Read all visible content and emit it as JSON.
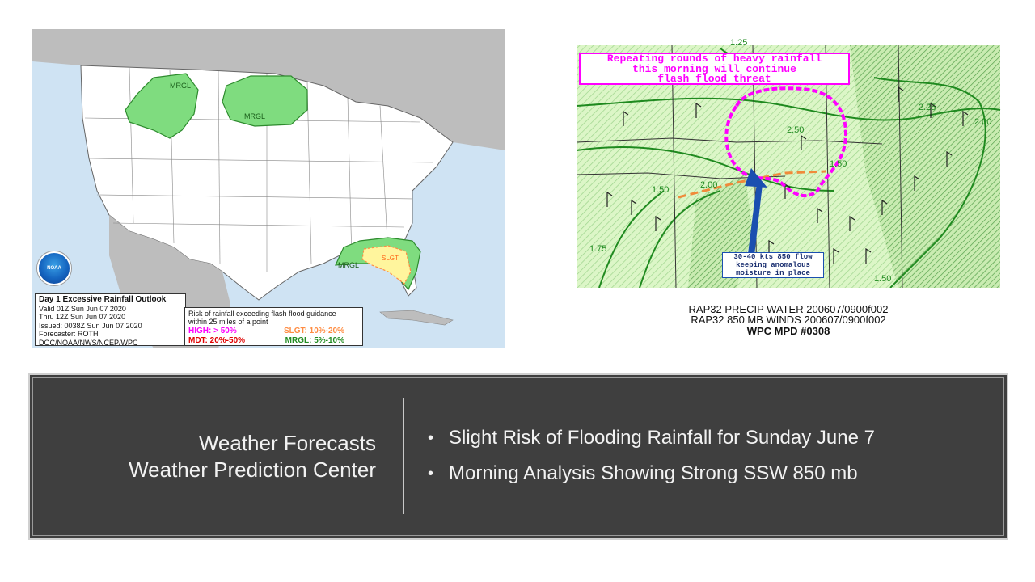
{
  "outlook": {
    "title": "Day 1 Excessive Rainfall Outlook",
    "valid": "Valid 01Z Sun Jun 07 2020",
    "thru": "Thru 12Z Sun Jun 07 2020",
    "issued": "Issued: 0038Z Sun Jun 07 2020",
    "forecaster": "Forecaster: ROTH",
    "agency": "DOC/NOAA/NWS/NCEP/WPC",
    "risk_heading_1": "Risk of rainfall exceeding flash flood guidance",
    "risk_heading_2": "within 25 miles of a point",
    "high": "HIGH: > 50%",
    "slgt": "SLGT: 10%-20%",
    "mdt": "MDT: 20%-50%",
    "mrgl": "MRGL: 5%-10%",
    "noaa_label": "NOAA",
    "map_labels": {
      "mrgl_nw": "MRGL",
      "mrgl_n": "MRGL",
      "mrgl_se": "MRGL",
      "slgt_se": "SLGT"
    },
    "colors": {
      "mrgl": "#7fdc7f",
      "slgt": "#fff59d",
      "high": "#ff00ff",
      "mdt": "#e00000",
      "slgt_text": "#ff8c42",
      "mrgl_text": "#228b22"
    }
  },
  "mpd": {
    "annotation": [
      "Repeating rounds of heavy rainfall",
      "this morning will continue",
      "flash flood threat"
    ],
    "arrow_note": [
      "30-40 kts 850 flow",
      "keeping anomalous",
      "moisture in place"
    ],
    "contours": [
      "1.25",
      "2.25",
      "2.00",
      "2.50",
      "2.00",
      "1.50",
      "1.75",
      "1.50",
      "1.50"
    ],
    "caption_1": "RAP32 PRECIP WATER 200607/0900f002",
    "caption_2": "RAP32 850 MB WINDS 200607/0900f002",
    "caption_3": "WPC MPD #0308"
  },
  "slide": {
    "title_line_1": "Weather Forecasts",
    "title_line_2": "Weather Prediction Center",
    "bullets": [
      "Slight Risk of Flooding Rainfall for Sunday June 7",
      "Morning Analysis Showing Strong SSW 850 mb"
    ],
    "bullet_glyph": "•"
  }
}
